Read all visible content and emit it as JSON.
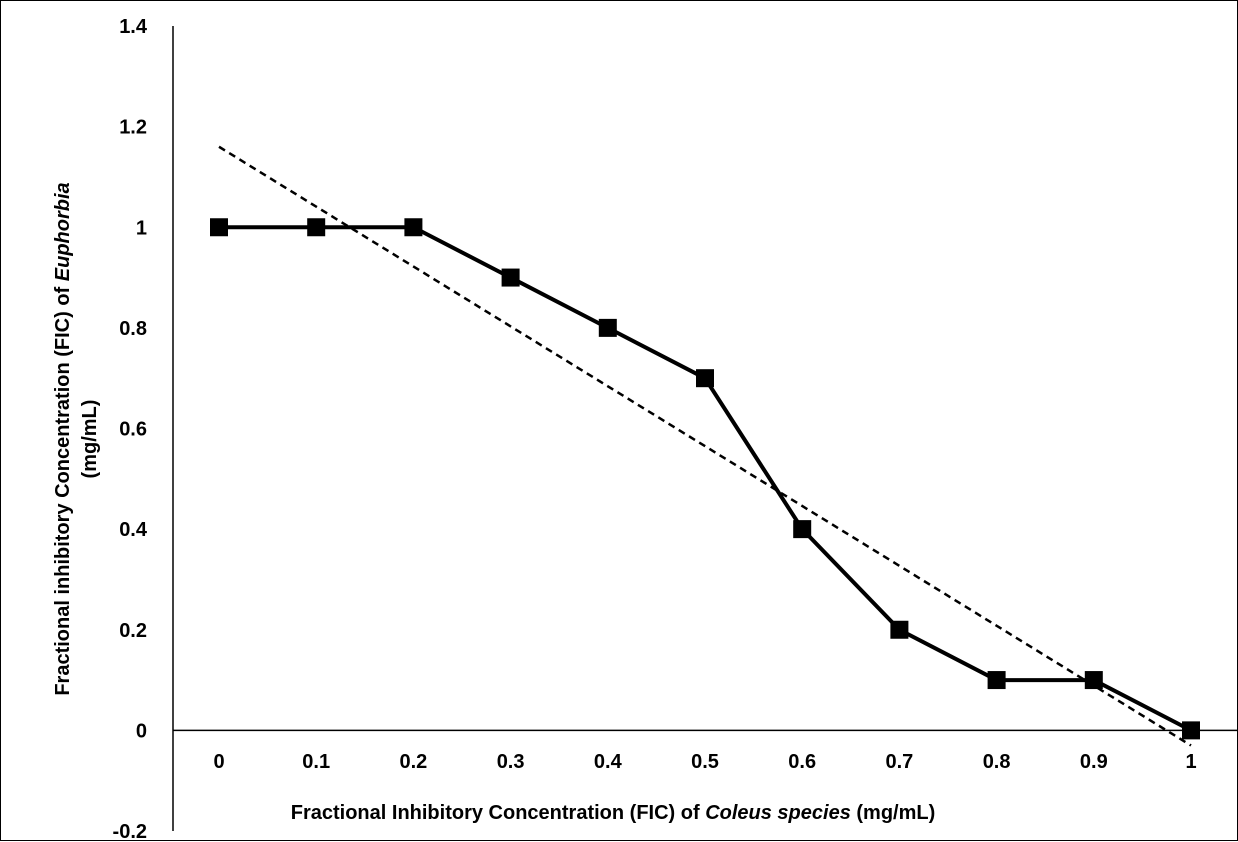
{
  "chart_data": {
    "type": "line",
    "xlabel": {
      "prefix": "Fractional Inhibitory Concentration (FIC) of ",
      "italic": "Coleus species",
      "suffix": " (mg/mL)"
    },
    "ylabel": {
      "line1_prefix": "Fractional inhibitory Concentration (FIC) of ",
      "line1_italic": "Euphorbia",
      "line2": "(mg/mL)"
    },
    "x_ticks": [
      "0",
      "0.1",
      "0.2",
      "0.3",
      "0.4",
      "0.5",
      "0.6",
      "0.7",
      "0.8",
      "0.9",
      "1"
    ],
    "y_ticks": [
      "-0.2",
      "0",
      "0.2",
      "0.4",
      "0.6",
      "0.8",
      "1",
      "1.2",
      "1.4"
    ],
    "xlim": [
      0,
      1
    ],
    "ylim": [
      -0.2,
      1.4
    ],
    "grid": false,
    "legend": "none",
    "series": [
      {
        "style": "solid-square-markers",
        "color": "#000000",
        "x": [
          0,
          0.1,
          0.2,
          0.3,
          0.4,
          0.5,
          0.6,
          0.7,
          0.8,
          0.9,
          1
        ],
        "y": [
          1,
          1,
          1,
          0.9,
          0.8,
          0.7,
          0.4,
          0.2,
          0.1,
          0.1,
          0
        ]
      },
      {
        "style": "dashed-trendline",
        "color": "#000000",
        "x": [
          0,
          1
        ],
        "y": [
          1.16,
          -0.03
        ]
      }
    ]
  }
}
